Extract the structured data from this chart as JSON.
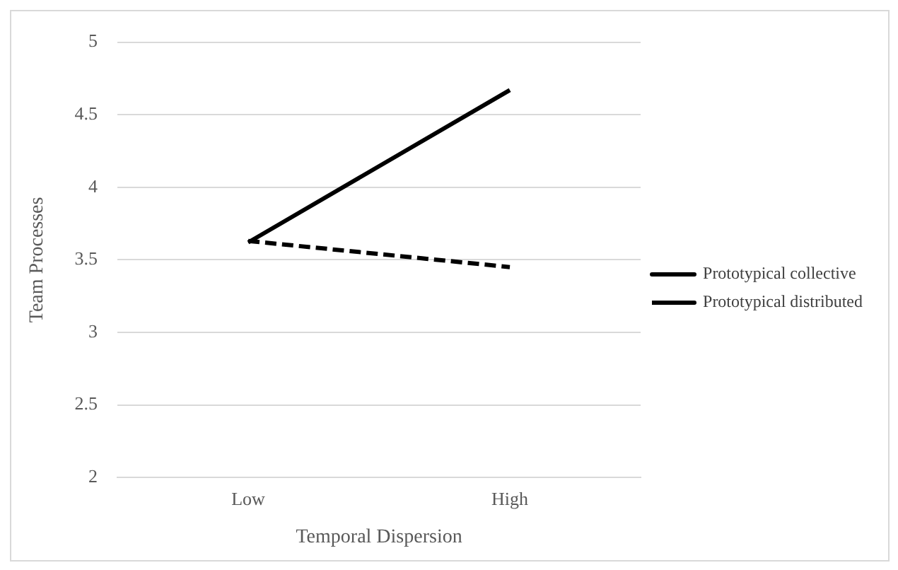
{
  "chart_data": {
    "type": "line",
    "xlabel": "Temporal Dispersion",
    "ylabel": "Team Processes",
    "categories": [
      "Low",
      "High"
    ],
    "series": [
      {
        "name": "Prototypical collective",
        "color": "#000000",
        "values": [
          3.62,
          4.67
        ],
        "line_style": "solid"
      },
      {
        "name": "Prototypical distributed",
        "color": "#000000",
        "values": [
          3.63,
          3.45
        ],
        "line_style": "dashed"
      }
    ],
    "ylim": [
      2,
      5
    ],
    "yticks": [
      2,
      2.5,
      3,
      3.5,
      4,
      4.5,
      5
    ],
    "grid": "y",
    "legend": "right",
    "marker": "none"
  }
}
